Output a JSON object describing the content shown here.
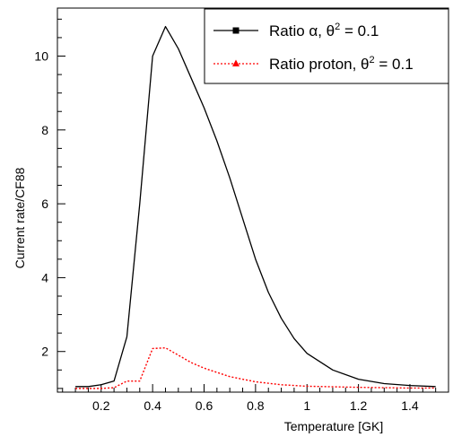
{
  "chart_data": {
    "type": "line",
    "xlabel": "Temperature [GK]",
    "ylabel": "Current rate/CF88",
    "xlim": [
      0.03,
      1.55
    ],
    "ylim": [
      0.9,
      11.3
    ],
    "x_ticks": [
      0.2,
      0.4,
      0.6,
      0.8,
      1.0,
      1.2,
      1.4
    ],
    "x_tick_labels": [
      "0.2",
      "0.4",
      "0.6",
      "0.8",
      "1",
      "1.2",
      "1.4"
    ],
    "y_ticks": [
      2,
      4,
      6,
      8,
      10
    ],
    "y_tick_labels": [
      "2",
      "4",
      "6",
      "8",
      "10"
    ],
    "grid": false,
    "legend_position": "top-right",
    "series": [
      {
        "name_base": "Ratio α, θ",
        "name_sup": "2",
        "name_tail": " = 0.1",
        "color": "#000000",
        "style": "solid",
        "marker": "square",
        "x": [
          0.1,
          0.15,
          0.2,
          0.25,
          0.3,
          0.35,
          0.4,
          0.45,
          0.5,
          0.55,
          0.6,
          0.65,
          0.7,
          0.75,
          0.8,
          0.85,
          0.9,
          0.95,
          1.0,
          1.1,
          1.2,
          1.3,
          1.4,
          1.5
        ],
        "y": [
          1.05,
          1.05,
          1.1,
          1.2,
          2.4,
          6.0,
          10.0,
          10.8,
          10.2,
          9.4,
          8.6,
          7.7,
          6.7,
          5.6,
          4.5,
          3.6,
          2.9,
          2.35,
          1.95,
          1.5,
          1.25,
          1.13,
          1.08,
          1.05
        ]
      },
      {
        "name_base": "Ratio proton, θ",
        "name_sup": "2",
        "name_tail": " = 0.1",
        "color": "#ff0000",
        "style": "dotted",
        "marker": "triangle",
        "x": [
          0.1,
          0.2,
          0.25,
          0.3,
          0.35,
          0.4,
          0.45,
          0.5,
          0.55,
          0.6,
          0.7,
          0.8,
          0.9,
          1.0,
          1.2,
          1.4,
          1.5
        ],
        "y": [
          1.0,
          1.0,
          1.02,
          1.2,
          1.2,
          2.08,
          2.1,
          1.9,
          1.7,
          1.55,
          1.32,
          1.18,
          1.1,
          1.06,
          1.03,
          1.01,
          1.01
        ]
      }
    ]
  }
}
